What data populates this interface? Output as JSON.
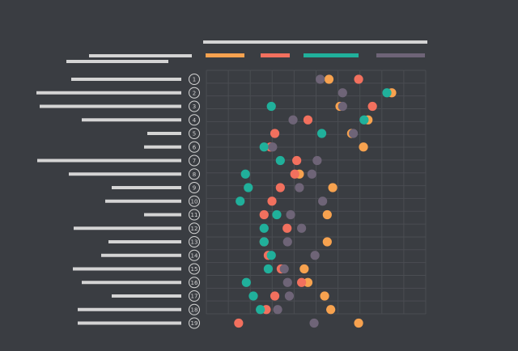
{
  "chart_data": {
    "type": "scatter",
    "title": "",
    "xlabel": "",
    "ylabel": "",
    "grid": true,
    "legend_position": "top",
    "colors": {
      "background": "#3a3d42",
      "grid": "#4a4d52",
      "placeholder_bar": "#d4d4d4",
      "row_circle": "#d4d4d4"
    },
    "xlim": [
      0,
      100
    ],
    "series": [
      {
        "color": "#f7a24f"
      },
      {
        "color": "#f2705e"
      },
      {
        "color": "#20b09b"
      },
      {
        "color": "#6e6477"
      }
    ],
    "rows": [
      {
        "label": "1",
        "values": [
          55.9,
          69.4,
          null,
          51.9
        ]
      },
      {
        "label": "2",
        "values": [
          84.5,
          null,
          82.3,
          62.1
        ]
      },
      {
        "label": "3",
        "values": [
          60.9,
          75.7,
          29.6,
          62.1
        ]
      },
      {
        "label": "4",
        "values": [
          73.7,
          46.3,
          71.9,
          39.5
        ]
      },
      {
        "label": "5",
        "values": [
          66.2,
          31.2,
          52.6,
          67.0
        ]
      },
      {
        "label": "6",
        "values": [
          71.6,
          29.2,
          26.3,
          30.2
        ]
      },
      {
        "label": "7",
        "values": [
          null,
          41.2,
          33.7,
          50.5
        ]
      },
      {
        "label": "8",
        "values": [
          42.4,
          40.3,
          17.8,
          48.1
        ]
      },
      {
        "label": "9",
        "values": [
          57.6,
          33.7,
          19.1,
          42.4
        ]
      },
      {
        "label": "10",
        "values": [
          null,
          29.9,
          15.4,
          53.0
        ]
      },
      {
        "label": "11",
        "values": [
          55.1,
          26.3,
          32.1,
          38.4
        ]
      },
      {
        "label": "12",
        "values": [
          null,
          36.8,
          26.3,
          43.4
        ]
      },
      {
        "label": "13",
        "values": [
          55.1,
          26.3,
          26.3,
          37.0
        ]
      },
      {
        "label": "14",
        "values": [
          null,
          28.2,
          29.6,
          49.5
        ]
      },
      {
        "label": "15",
        "values": [
          44.6,
          34.1,
          28.2,
          35.5
        ]
      },
      {
        "label": "16",
        "values": [
          46.3,
          43.4,
          18.2,
          37.0
        ]
      },
      {
        "label": "17",
        "values": [
          53.9,
          31.2,
          21.4,
          37.8
        ]
      },
      {
        "label": "18",
        "values": [
          56.7,
          27.3,
          24.6,
          32.5
        ]
      },
      {
        "label": "19",
        "values": [
          69.4,
          14.7,
          null,
          49.1
        ]
      }
    ]
  }
}
